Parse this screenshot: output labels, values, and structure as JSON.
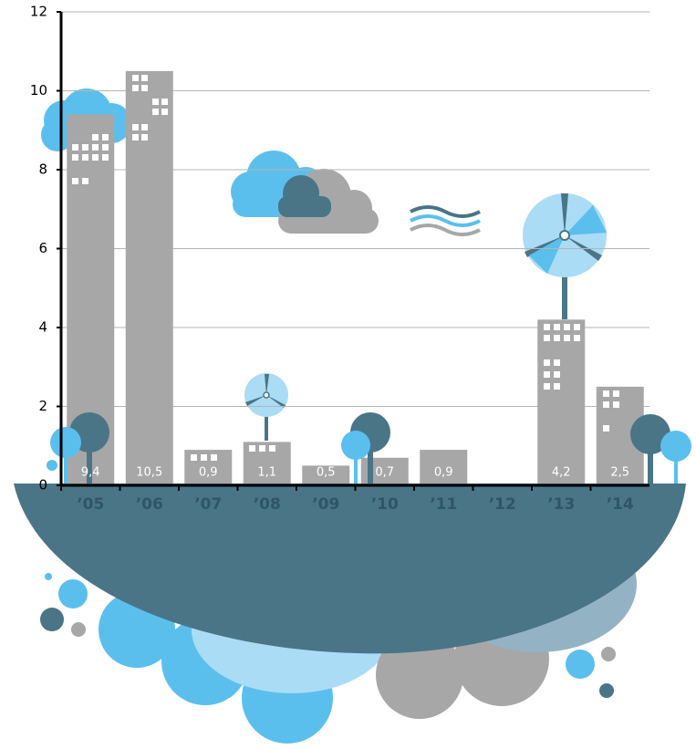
{
  "chart_data": {
    "type": "bar",
    "categories": [
      "’05",
      "’06",
      "’07",
      "’08",
      "’09",
      "’10",
      "’11",
      "’12",
      "’13",
      "’14"
    ],
    "values": [
      9.4,
      10.5,
      0.9,
      1.1,
      0.5,
      0.7,
      0.9,
      null,
      4.2,
      2.5
    ],
    "value_labels": [
      "9,4",
      "10,5",
      "0,9",
      "1,1",
      "0,5",
      "0,7",
      "0,9",
      null,
      "4,2",
      "2,5"
    ],
    "color": "#a7a7a7",
    "ylim": [
      0,
      12
    ],
    "yticks": [
      0,
      2,
      4,
      6,
      8,
      10,
      12
    ],
    "grid": true
  }
}
